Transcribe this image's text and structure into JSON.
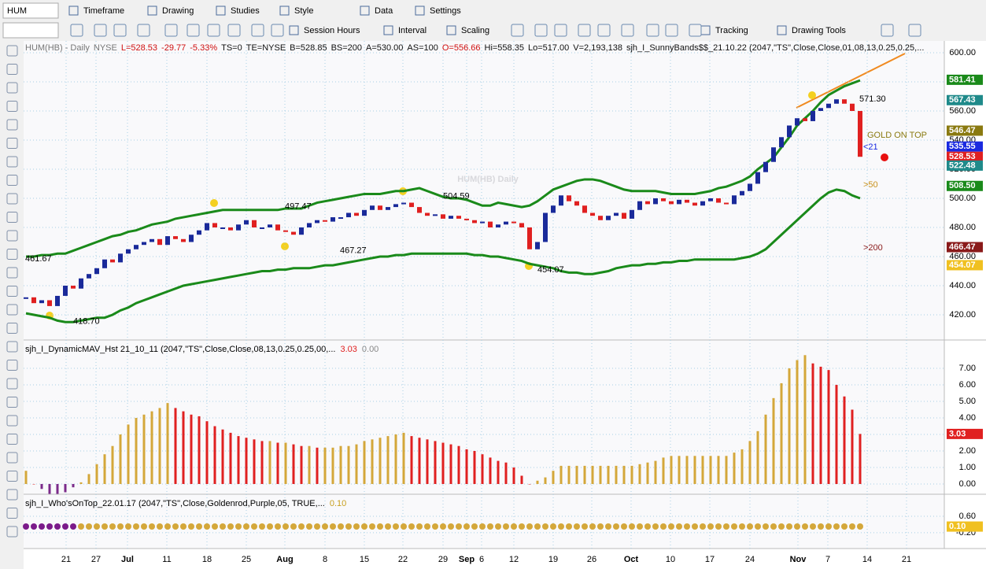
{
  "toolbar": {
    "symbol": "HUM",
    "row1": [
      "Timeframe",
      "Drawing",
      "Studies",
      "Style",
      "Data",
      "Settings"
    ],
    "row2": [
      "Session Hours",
      "Interval",
      "Scaling",
      "Tracking",
      "Drawing Tools"
    ]
  },
  "date_axis": {
    "labels": [
      "21",
      "27",
      "Jul",
      "11",
      "18",
      "25",
      "Aug",
      "8",
      "15",
      "22",
      "29",
      "Sep",
      "6",
      "12",
      "19",
      "26",
      "Oct",
      "10",
      "17",
      "24",
      "Nov",
      "7",
      "14",
      "21"
    ]
  },
  "chart_data": [
    {
      "type": "price",
      "watermark": "HUM(HB) Daily",
      "header": [
        {
          "text": "HUM(HB) - Daily",
          "color": "#777777"
        },
        {
          "text": "NYSE",
          "color": "#777777"
        },
        {
          "text": "L=528.53",
          "color": "#d01010"
        },
        {
          "text": "-29.77",
          "color": "#d01010"
        },
        {
          "text": "-5.33%",
          "color": "#d01010"
        },
        {
          "text": "TS=0",
          "color": "#111111"
        },
        {
          "text": "TE=NYSE",
          "color": "#111111"
        },
        {
          "text": "B=528.85",
          "color": "#111111"
        },
        {
          "text": "BS=200",
          "color": "#111111"
        },
        {
          "text": "A=530.00",
          "color": "#111111"
        },
        {
          "text": "AS=100",
          "color": "#111111"
        },
        {
          "text": "O=556.66",
          "color": "#d01010"
        },
        {
          "text": "Hi=558.35",
          "color": "#111111"
        },
        {
          "text": "Lo=517.00",
          "color": "#111111"
        },
        {
          "text": "V=2,193,138",
          "color": "#111111"
        },
        {
          "text": "sjh_I_SunnyBands$$_21.10.22 (2047,\"TS\",Close,Close,01,08,13,0.25,0.25,...",
          "color": "#111111"
        }
      ],
      "ylim": [
        402.7,
        608.1
      ],
      "yticks": [
        {
          "value": 600,
          "label": "600.00"
        },
        {
          "value": 580,
          "label": "580.00"
        },
        {
          "value": 560,
          "label": "560.00"
        },
        {
          "value": 540,
          "label": "540.00"
        },
        {
          "value": 520,
          "label": "520.00"
        },
        {
          "value": 500,
          "label": "500.00"
        },
        {
          "value": 480,
          "label": "480.00"
        },
        {
          "value": 460,
          "label": "460.00"
        },
        {
          "value": 440,
          "label": "440.00"
        },
        {
          "value": 420,
          "label": "420.00"
        }
      ],
      "closes": {
        "up_color": "#1a2a9a",
        "down_color": "#e02020",
        "values": [
          432,
          428,
          430,
          426,
          433,
          440,
          438,
          445,
          448,
          452,
          458,
          456,
          462,
          465,
          468,
          470,
          472,
          468,
          474,
          472,
          470,
          475,
          478,
          483,
          480,
          480,
          478,
          482,
          485,
          480,
          480,
          482,
          478,
          477,
          475,
          480,
          483,
          485,
          484,
          487,
          487,
          490,
          488,
          492,
          495,
          492,
          494,
          496,
          497,
          494,
          490,
          488,
          489,
          486,
          488,
          486,
          485,
          483,
          484,
          480,
          482,
          484,
          483,
          480,
          465,
          470,
          490,
          495,
          502,
          498,
          495,
          490,
          488,
          485,
          488,
          490,
          486,
          492,
          498,
          496,
          500,
          498,
          496,
          499,
          497,
          495,
          498,
          500,
          497,
          496,
          502,
          505,
          510,
          518,
          525,
          535,
          542,
          550,
          555,
          553,
          560,
          562,
          565,
          568,
          565,
          560,
          528.53
        ]
      },
      "upper_band": {
        "color": "#1a8a1a",
        "values": [
          460,
          460,
          461,
          461,
          462,
          462,
          464,
          466,
          468,
          470,
          472,
          474,
          475,
          477,
          478,
          480,
          482,
          483,
          484,
          486,
          487,
          488,
          489,
          490,
          491,
          492,
          492,
          492,
          492,
          492,
          492,
          492,
          492,
          493,
          493,
          493,
          495,
          497,
          498,
          499,
          500,
          501,
          502,
          503,
          503,
          503,
          504,
          505,
          505,
          506,
          507,
          505,
          503,
          501,
          500,
          500,
          499,
          497,
          495,
          495,
          497,
          496,
          495,
          494,
          495,
          498,
          502,
          506,
          508,
          510,
          512,
          513,
          513,
          512,
          510,
          508,
          506,
          505,
          505,
          505,
          505,
          504,
          503,
          503,
          503,
          503,
          504,
          505,
          507,
          508,
          510,
          512,
          515,
          520,
          524,
          528,
          535,
          542,
          550,
          555,
          560,
          566,
          571,
          574,
          577,
          579,
          581
        ]
      },
      "lower_band": {
        "color": "#1a8a1a",
        "values": [
          421,
          420,
          419,
          418,
          416,
          415,
          415,
          416,
          417,
          418,
          418,
          420,
          423,
          425,
          428,
          430,
          432,
          434,
          436,
          438,
          440,
          441,
          442,
          443,
          444,
          445,
          446,
          447,
          448,
          449,
          450,
          450,
          451,
          451,
          452,
          452,
          452,
          453,
          454,
          454,
          455,
          456,
          457,
          458,
          459,
          460,
          460,
          461,
          461,
          462,
          462,
          462,
          462,
          462,
          462,
          462,
          462,
          461,
          461,
          460,
          460,
          459,
          458,
          457,
          455,
          454,
          453,
          452,
          450,
          449,
          449,
          448,
          448,
          449,
          450,
          452,
          453,
          454,
          454,
          455,
          455,
          456,
          456,
          457,
          457,
          458,
          458,
          458,
          458,
          458,
          458,
          459,
          460,
          462,
          465,
          470,
          475,
          480,
          485,
          490,
          495,
          500,
          504,
          506,
          505,
          502,
          500
        ]
      },
      "tags": [
        {
          "value": 581.41,
          "label": "581.41",
          "color": "#1a8a1a"
        },
        {
          "value": 567.43,
          "label": "567.43",
          "color": "#1f8a8a"
        },
        {
          "value": 546.47,
          "label": "546.47",
          "color": "#8a7a10"
        },
        {
          "value": 535.55,
          "label": "535.55",
          "color": "#1a2ae0"
        },
        {
          "value": 528.53,
          "label": "528.53",
          "color": "#e02020"
        },
        {
          "value": 522.48,
          "label": "522.48",
          "color": "#1f8a8a"
        },
        {
          "value": 508.5,
          "label": "508.50",
          "color": "#1a8a1a"
        },
        {
          "value": 466.47,
          "label": "466.47",
          "color": "#8a1a1a"
        },
        {
          "value": 454.07,
          "label": "454.07",
          "color": "#f0c020"
        }
      ],
      "annotations": [
        {
          "value": 571.3,
          "label": "571.30"
        },
        {
          "value": 461.67,
          "label": "461.67"
        },
        {
          "value": 418.7,
          "label": "418.70"
        },
        {
          "value": 497.47,
          "label": "497.47"
        },
        {
          "value": 467.27,
          "label": "467.27"
        },
        {
          "value": 504.59,
          "label": "504.59"
        },
        {
          "value": 454.07,
          "label": "454.07"
        }
      ],
      "labels": [
        {
          "text": "GOLD ON TOP",
          "color": "#8a7a10"
        },
        {
          "text": "<21",
          "color": "#1a2ae0"
        },
        {
          "text": ">50",
          "color": "#c8901a"
        },
        {
          "text": ">200",
          "color": "#8a1a1a"
        }
      ]
    },
    {
      "type": "histogram",
      "title": "sjh_I_DynamicMAV_Hst 21_10_11 (2047,\"TS\",Close,Close,08,13,0.25,0.25,00,...",
      "readouts": [
        {
          "value": 3.03,
          "label": "3.03",
          "color": "#e02020"
        },
        {
          "value": 0,
          "label": "0.00",
          "color": "#888888"
        }
      ],
      "ylim": [
        -0.62,
        8.67
      ],
      "yticks": [
        {
          "value": 7,
          "label": "7.00"
        },
        {
          "value": 6,
          "label": "6.00"
        },
        {
          "value": 5,
          "label": "5.00"
        },
        {
          "value": 4,
          "label": "4.00"
        },
        {
          "value": 3,
          "label": "3.00"
        },
        {
          "value": 2,
          "label": "2.00"
        },
        {
          "value": 1,
          "label": "1.00"
        },
        {
          "value": 0,
          "label": "0.00"
        }
      ],
      "colors": {
        "rise": "#d4a73a",
        "fall": "#e02020",
        "negative": "#7b2a8a"
      },
      "values": [
        0.8,
        0,
        -0.3,
        -0.6,
        -0.6,
        -0.5,
        -0.2,
        0.1,
        0.6,
        1.2,
        1.8,
        2.3,
        3.0,
        3.6,
        4.0,
        4.2,
        4.4,
        4.6,
        4.9,
        4.6,
        4.4,
        4.2,
        4.1,
        3.8,
        3.5,
        3.3,
        3.1,
        2.9,
        2.8,
        2.7,
        2.6,
        2.6,
        2.5,
        2.5,
        2.4,
        2.3,
        2.3,
        2.2,
        2.2,
        2.2,
        2.3,
        2.3,
        2.4,
        2.6,
        2.7,
        2.8,
        2.9,
        3.0,
        3.1,
        2.9,
        2.8,
        2.7,
        2.6,
        2.5,
        2.4,
        2.3,
        2.1,
        2.0,
        1.8,
        1.6,
        1.4,
        1.3,
        1.0,
        0.5,
        0.0,
        0.2,
        0.4,
        0.8,
        1.1,
        1.1,
        1.1,
        1.1,
        1.1,
        1.1,
        1.1,
        1.1,
        1.1,
        1.1,
        1.2,
        1.3,
        1.4,
        1.6,
        1.7,
        1.7,
        1.7,
        1.7,
        1.7,
        1.7,
        1.7,
        1.7,
        1.9,
        2.1,
        2.6,
        3.2,
        4.2,
        5.2,
        6.1,
        7.0,
        7.5,
        7.8,
        7.3,
        7.1,
        6.9,
        6.0,
        5.3,
        4.5,
        3.03
      ],
      "tag": {
        "value": 3.03,
        "label": "3.03",
        "color": "#e02020"
      }
    },
    {
      "type": "dots",
      "title": "sjh_I_Who'sOnTop_22.01.17 (2047,\"TS\",Close,Goldenrod,Purple,05, TRUE,...",
      "readouts": [
        {
          "value": 0.1,
          "label": "0.10",
          "color": "#c8a020"
        }
      ],
      "ylim": [
        -0.89,
        1.63
      ],
      "yticks": [
        {
          "value": 0.6,
          "label": "0.60"
        },
        {
          "value": -0.2,
          "label": "-0.20"
        }
      ],
      "tag": {
        "value": 0.1,
        "label": "0.10",
        "color": "#f0c020"
      }
    }
  ]
}
